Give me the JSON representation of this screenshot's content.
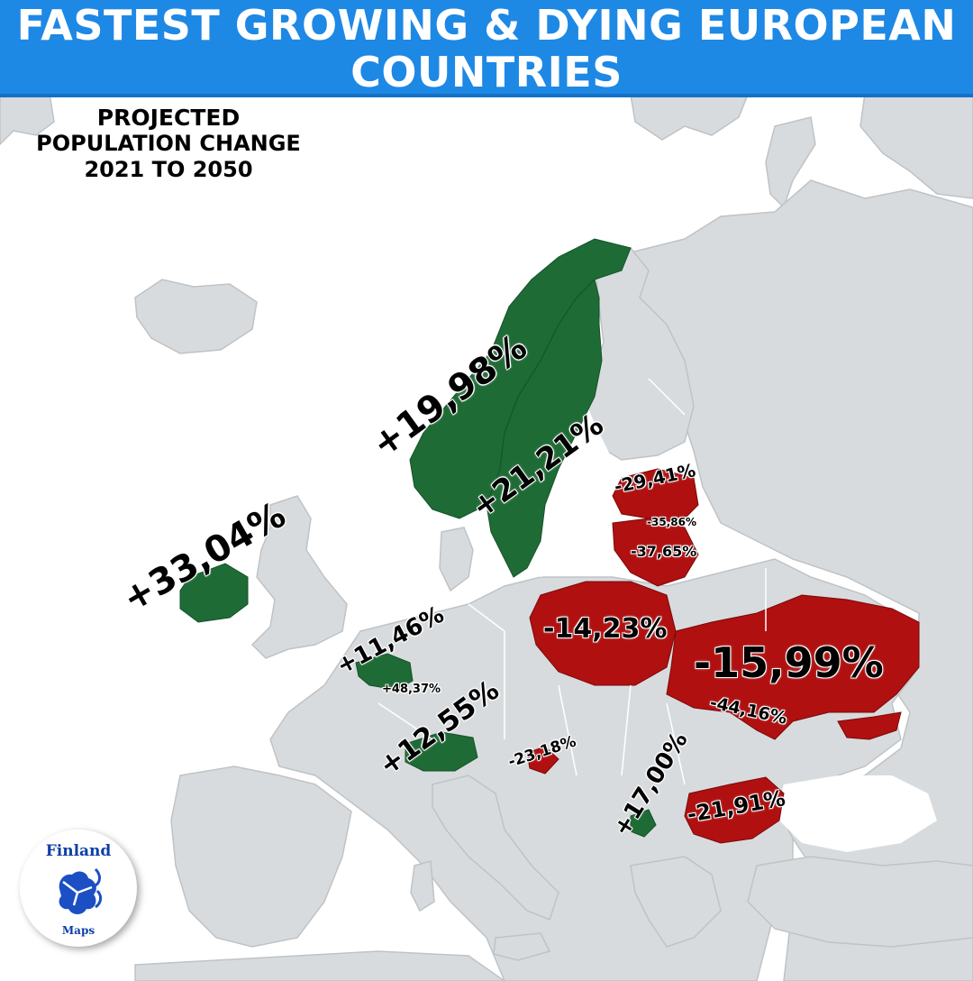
{
  "title": {
    "line1": "FASTEST GROWING & DYING EUROPEAN",
    "line2": "COUNTRIES"
  },
  "subtitle": {
    "line1": "PROJECTED",
    "line2": "POPULATION CHANGE",
    "line3": "2021 TO 2050"
  },
  "colors": {
    "growing": "#1e6b35",
    "dying": "#b01010",
    "land": "#d8dbdd",
    "sea": "#ffffff",
    "title_bar": "#1e88e5"
  },
  "map_labels": {
    "norway": "+19,98%",
    "sweden": "+21,21%",
    "ireland": "+33,04%",
    "belgium": "+11,46%",
    "luxembourg": "+48,37%",
    "switzerland": "+12,55%",
    "latvia": "-29,41%",
    "estonia_small": "-35,86%",
    "lithuania": "-37,65%",
    "poland": "-14,23%",
    "ukraine": "-15,99%",
    "moldova": "-44,16%",
    "croatia_slovenia": "-23,18%",
    "montenegro": "+17,00%",
    "bulgaria": "-21,91%"
  },
  "badge": {
    "top": "Finland",
    "bottom": "Maps",
    "icon": "lion-coat-of-arms-icon"
  }
}
